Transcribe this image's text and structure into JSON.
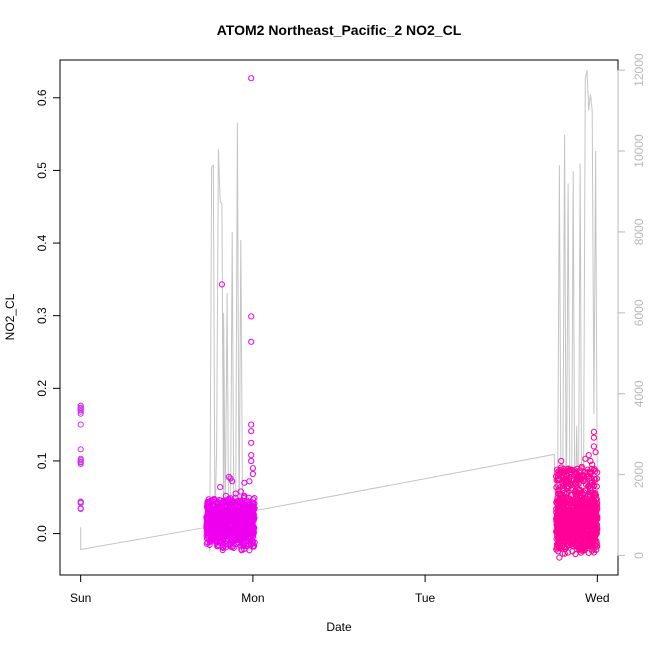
{
  "chart_data": {
    "type": "scatter",
    "title": "ATOM2 Northeast_Pacific_2 NO2_CL",
    "xlabel": "Date",
    "ylabel": "NO2_CL",
    "x_ticks": [
      {
        "label": "Sun",
        "value": 0
      },
      {
        "label": "Mon",
        "value": 1
      },
      {
        "label": "Tue",
        "value": 2
      },
      {
        "label": "Wed",
        "value": 3
      }
    ],
    "xlim": [
      -0.12,
      3.12
    ],
    "ylim": [
      -0.057,
      0.652
    ],
    "y_ticks": [
      0.0,
      0.1,
      0.2,
      0.3,
      0.4,
      0.5,
      0.6
    ],
    "y_tick_labels": [
      "0.0",
      "0.1",
      "0.2",
      "0.3",
      "0.4",
      "0.5",
      "0.6"
    ],
    "y2lim": [
      -480,
      12250
    ],
    "y2_ticks": [
      0,
      2000,
      4000,
      6000,
      8000,
      10000,
      12000
    ],
    "y2_tick_labels": [
      "0",
      "2000",
      "4000",
      "6000",
      "8000",
      "10000",
      "12000"
    ],
    "colors": {
      "early_points": "#cc33ee",
      "mon_points": "#ee00ee",
      "wed_points": "#ff0099",
      "altitude_line": "#c4c4c4",
      "axis": "#000000",
      "right_axis": "#b8b8b8"
    },
    "series": [
      {
        "marker": "circle",
        "x": [
          0.0,
          0.0,
          0.0,
          0.0,
          0.0,
          0.0,
          0.0,
          0.0,
          0.0,
          0.0,
          0.0,
          0.0,
          0.0,
          0.0,
          0.0,
          0.0,
          0.0,
          0.0,
          0.0
        ],
        "y": [
          0.176,
          0.173,
          0.17,
          0.165,
          0.15,
          0.116,
          0.103,
          0.098,
          0.096,
          0.044,
          0.042,
          0.034,
          0.176,
          0.172,
          0.168,
          0.101,
          0.099,
          0.043,
          0.035
        ]
      },
      {
        "marker": "circle",
        "x_range": [
          0.73,
          1.01
        ],
        "y_bulk_range": [
          -0.02,
          0.05
        ],
        "outliers": [
          {
            "x": 0.82,
            "y": 0.343
          },
          {
            "x": 0.81,
            "y": 0.064
          },
          {
            "x": 0.86,
            "y": 0.078
          },
          {
            "x": 0.87,
            "y": 0.076
          },
          {
            "x": 0.88,
            "y": 0.072
          },
          {
            "x": 0.9,
            "y": 0.055
          },
          {
            "x": 0.93,
            "y": 0.058
          },
          {
            "x": 0.95,
            "y": 0.052
          },
          {
            "x": 0.99,
            "y": 0.627
          },
          {
            "x": 0.99,
            "y": 0.299
          },
          {
            "x": 0.99,
            "y": 0.264
          },
          {
            "x": 0.99,
            "y": 0.15
          },
          {
            "x": 0.99,
            "y": 0.141
          },
          {
            "x": 0.99,
            "y": 0.125
          },
          {
            "x": 0.99,
            "y": 0.108
          },
          {
            "x": 0.99,
            "y": 0.1
          },
          {
            "x": 1.0,
            "y": 0.09
          },
          {
            "x": 1.0,
            "y": 0.082
          },
          {
            "x": 0.98,
            "y": 0.072
          },
          {
            "x": 0.95,
            "y": 0.07
          }
        ]
      },
      {
        "marker": "circle",
        "x_range": [
          2.76,
          3.0
        ],
        "y_bulk_range": [
          -0.025,
          0.06
        ],
        "outliers": [
          {
            "x": 2.79,
            "y": 0.1
          },
          {
            "x": 2.79,
            "y": 0.091
          },
          {
            "x": 2.8,
            "y": 0.083
          },
          {
            "x": 2.85,
            "y": 0.075
          },
          {
            "x": 2.87,
            "y": 0.085
          },
          {
            "x": 2.91,
            "y": 0.092
          },
          {
            "x": 2.93,
            "y": 0.103
          },
          {
            "x": 2.95,
            "y": 0.108
          },
          {
            "x": 2.96,
            "y": 0.1
          },
          {
            "x": 2.97,
            "y": 0.095
          },
          {
            "x": 2.98,
            "y": 0.14
          },
          {
            "x": 2.98,
            "y": 0.132
          },
          {
            "x": 2.98,
            "y": 0.12
          },
          {
            "x": 2.99,
            "y": 0.112
          },
          {
            "x": 2.92,
            "y": 0.072
          },
          {
            "x": 2.78,
            "y": -0.033
          },
          {
            "x": 2.83,
            "y": -0.026
          }
        ]
      },
      {
        "type": "line",
        "axis": "right",
        "x": [
          0.0,
          0.0,
          0.73,
          0.75,
          0.76,
          0.77,
          0.78,
          0.79,
          0.8,
          0.81,
          0.82,
          0.83,
          0.83,
          0.84,
          0.85,
          0.86,
          0.87,
          0.88,
          0.89,
          0.9,
          0.91,
          0.92,
          0.93,
          0.94,
          0.95,
          0.96,
          0.97,
          0.98,
          0.99,
          1.0,
          2.75,
          2.76,
          2.77,
          2.78,
          2.79,
          2.8,
          2.81,
          2.82,
          2.83,
          2.84,
          2.85,
          2.86,
          2.87,
          2.88,
          2.89,
          2.9,
          2.91,
          2.92,
          2.93,
          2.94,
          2.95,
          2.96,
          2.97,
          2.98,
          2.99,
          2.99,
          3.0,
          2.96,
          2.97,
          2.99
        ],
        "y": [
          700,
          150,
          700,
          100,
          9600,
          9650,
          600,
          2800,
          10050,
          8750,
          8700,
          800,
          6000,
          900,
          6500,
          400,
          1000,
          8000,
          500,
          1200,
          10700,
          600,
          7800,
          1000,
          800,
          600,
          100,
          300,
          1000,
          1100,
          2500,
          200,
          2000,
          9650,
          300,
          2400,
          10400,
          500,
          9200,
          2000,
          800,
          9500,
          400,
          3200,
          300,
          9700,
          500,
          2000,
          11800,
          12000,
          11000,
          11400,
          11000,
          3500,
          9900,
          10000,
          1500,
          500,
          300,
          200
        ]
      }
    ]
  }
}
